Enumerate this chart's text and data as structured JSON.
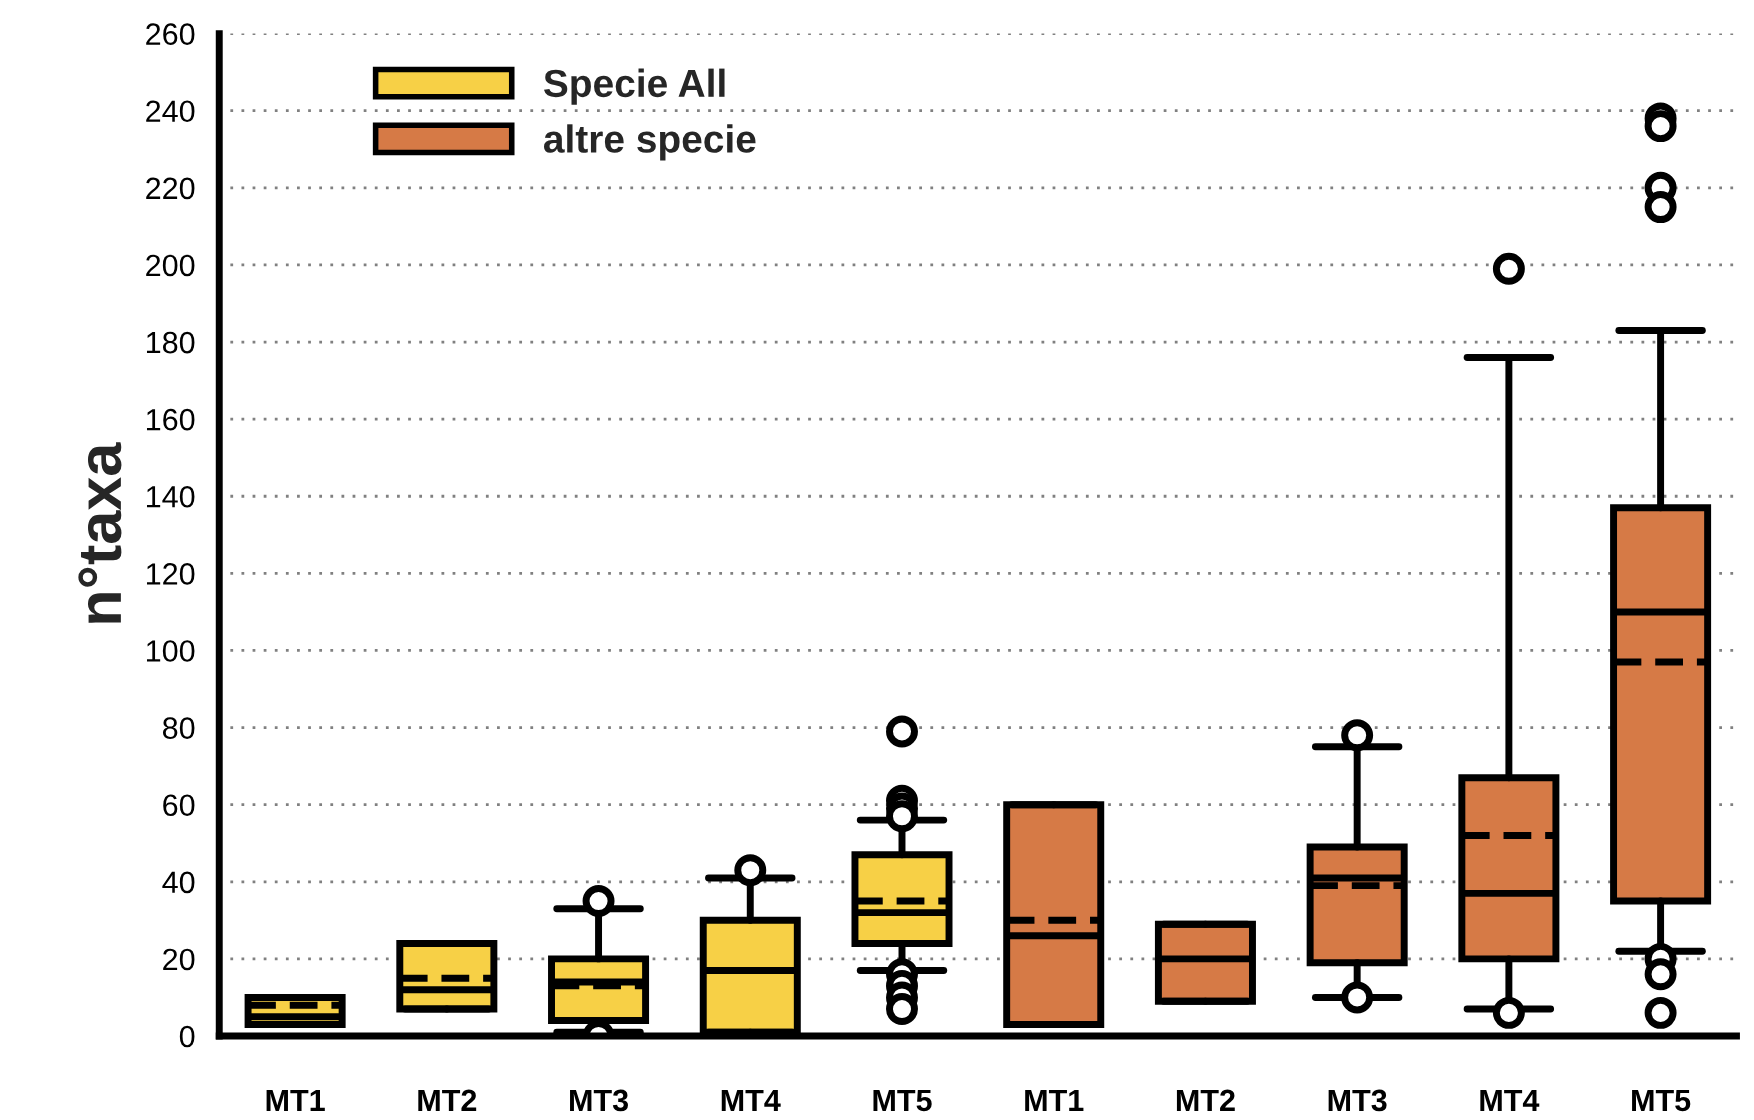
{
  "chart_data": {
    "type": "box",
    "ylabel": "n°taxa",
    "categories": [
      "MT1",
      "MT2",
      "MT3",
      "MT4",
      "MT5",
      "MT1",
      "MT2",
      "MT3",
      "MT4",
      "MT5"
    ],
    "ylim": [
      0,
      260
    ],
    "yticks": [
      0,
      20,
      40,
      60,
      80,
      100,
      120,
      140,
      160,
      180,
      200,
      220,
      240,
      260
    ],
    "grid": "y",
    "legend": "top left",
    "series": [
      {
        "name": "Specie All",
        "color": "#f7d046",
        "boxes": [
          {
            "low": 3,
            "q1": 3,
            "median": 5,
            "mean": 8,
            "q3": 10,
            "high": 10
          },
          {
            "low": 7,
            "q1": 7,
            "median": 12,
            "mean": 15,
            "q3": 24,
            "high": 24
          },
          {
            "low": 1,
            "q1": 4,
            "median": 14,
            "mean": 13,
            "q3": 20,
            "high": 33,
            "outliers": [
              0,
              35
            ]
          },
          {
            "low": 1,
            "q1": 1,
            "median": 17,
            "q3": 30,
            "high": 41,
            "outliers": [
              43
            ]
          },
          {
            "low": 17,
            "q1": 24,
            "median": 32,
            "mean": 35,
            "q3": 47,
            "high": 56,
            "outliers": [
              79,
              61,
              59,
              57,
              16,
              13,
              10,
              7
            ]
          },
          null,
          null,
          null,
          null,
          null
        ]
      },
      {
        "name": "altre specie",
        "color": "#d67a46",
        "boxes": [
          null,
          null,
          null,
          null,
          null,
          {
            "low": 3,
            "q1": 3,
            "median": 26,
            "mean": 30,
            "q3": 60,
            "high": 60
          },
          {
            "low": 9,
            "q1": 9,
            "median": 20,
            "q3": 29,
            "high": 29
          },
          {
            "low": 10,
            "q1": 19,
            "median": 41,
            "mean": 39,
            "q3": 49,
            "high": 75,
            "outliers": [
              78,
              10
            ]
          },
          {
            "low": 7,
            "q1": 20,
            "median": 37,
            "mean": 52,
            "q3": 67,
            "high": 176,
            "outliers": [
              199,
              6
            ]
          },
          {
            "low": 22,
            "q1": 35,
            "median": 110,
            "mean": 97,
            "q3": 137,
            "high": 183,
            "outliers": [
              238,
              236,
              220,
              215,
              20,
              16,
              6
            ]
          }
        ]
      }
    ]
  }
}
